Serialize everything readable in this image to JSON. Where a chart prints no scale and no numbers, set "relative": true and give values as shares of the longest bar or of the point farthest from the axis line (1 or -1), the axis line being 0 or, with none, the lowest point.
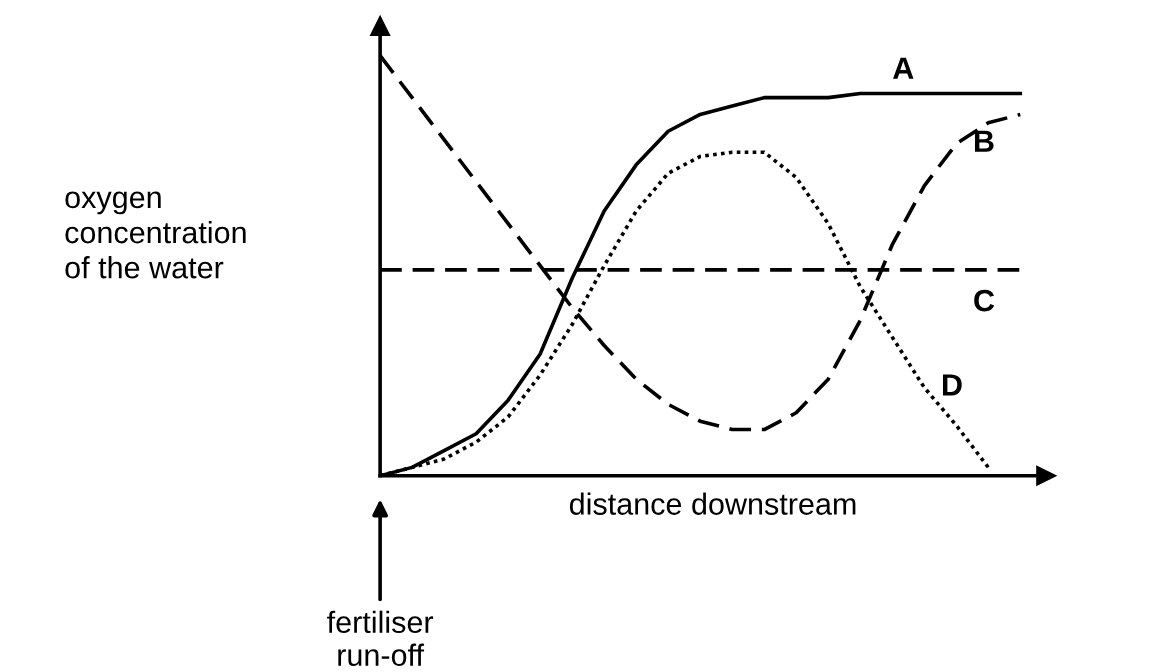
{
  "chart_data": {
    "type": "line",
    "relative": true,
    "xlabel": "distance downstream",
    "ylabel": "oxygen\nconcentration\nof the water",
    "annotations": [
      "fertiliser\nrun-off"
    ],
    "legend": false,
    "marker": "none",
    "categories": [
      null,
      null,
      null,
      null,
      null,
      null,
      null,
      null,
      null,
      null,
      null,
      null,
      null,
      null,
      null,
      null,
      null,
      null,
      null,
      null,
      null
    ],
    "series": [
      {
        "name": "A",
        "color": "#000000",
        "line_style": "solid",
        "values": [
          0,
          0.02,
          0.06,
          0.1,
          0.18,
          0.29,
          0.47,
          0.63,
          0.74,
          0.82,
          0.86,
          0.88,
          0.9,
          0.9,
          0.9,
          0.91,
          0.91,
          0.91,
          0.91,
          0.91,
          0.91
        ]
      },
      {
        "name": "B",
        "color": "#000000",
        "line_style": "dashed",
        "values": [
          1.0,
          0.9,
          0.8,
          0.7,
          0.6,
          0.5,
          0.4,
          0.31,
          0.23,
          0.17,
          0.13,
          0.11,
          0.11,
          0.15,
          0.23,
          0.37,
          0.55,
          0.69,
          0.79,
          0.84,
          0.86
        ]
      },
      {
        "name": "C",
        "color": "#000000",
        "line_style": "dashed",
        "values": [
          0.49,
          0.49,
          0.49,
          0.49,
          0.49,
          0.49,
          0.49,
          0.49,
          0.49,
          0.49,
          0.49,
          0.49,
          0.49,
          0.49,
          0.49,
          0.49,
          0.49,
          0.49,
          0.49,
          0.49,
          0.49
        ]
      },
      {
        "name": "D",
        "color": "#000000",
        "line_style": "dotted",
        "values": [
          0,
          0.02,
          0.04,
          0.08,
          0.14,
          0.24,
          0.36,
          0.5,
          0.63,
          0.72,
          0.76,
          0.77,
          0.77,
          0.71,
          0.6,
          0.45,
          0.33,
          0.21,
          0.12,
          0.02,
          null
        ]
      }
    ]
  }
}
